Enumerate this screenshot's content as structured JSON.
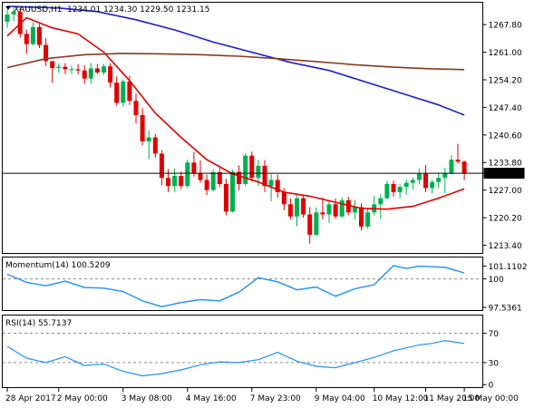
{
  "header": {
    "symbol": "XAUUSD,H1",
    "ohlc": "1234.01 1234.30 1229.50 1231.15"
  },
  "colors": {
    "bull": "#00b050",
    "bear": "#e00000",
    "sma_fast": "#e00000",
    "sma_mid": "#1c1cd2",
    "sma_slow": "#8b3a1e",
    "osc": "#1e90ff",
    "grid": "#8c8c8c"
  },
  "chart_data": [
    {
      "type": "candlestick",
      "name": "XAUUSD,H1",
      "price_label": "1231.15",
      "yticks": [
        "1267.80",
        "1261.00",
        "1254.20",
        "1247.40",
        "1240.60",
        "1233.80",
        "1227.00",
        "1220.20",
        "1213.40"
      ],
      "ylim": [
        1211.5,
        1273.2
      ],
      "last_price": 1231.15,
      "ohlc": [
        [
          1268.5,
          1271.5,
          1267.0,
          1270.3
        ],
        [
          1270.3,
          1272.0,
          1268.6,
          1271.0
        ],
        [
          1271.0,
          1272.3,
          1264.6,
          1265.5
        ],
        [
          1265.5,
          1266.6,
          1260.6,
          1263.0
        ],
        [
          1263.0,
          1268.4,
          1262.7,
          1267.2
        ],
        [
          1267.2,
          1268.0,
          1262.0,
          1262.8
        ],
        [
          1262.8,
          1264.5,
          1257.6,
          1258.8
        ],
        [
          1258.8,
          1258.7,
          1253.4,
          1257.1
        ],
        [
          1257.1,
          1258.3,
          1255.9,
          1257.4
        ],
        [
          1257.4,
          1258.3,
          1255.6,
          1256.8
        ],
        [
          1256.8,
          1257.7,
          1255.6,
          1256.8
        ],
        [
          1256.8,
          1258.1,
          1255.5,
          1256.5
        ],
        [
          1256.5,
          1257.8,
          1253.2,
          1254.5
        ],
        [
          1254.5,
          1258.3,
          1253.2,
          1257.0
        ],
        [
          1257.0,
          1258.1,
          1255.6,
          1256.0
        ],
        [
          1256.0,
          1258.1,
          1255.4,
          1257.5
        ],
        [
          1257.5,
          1258.3,
          1252.3,
          1253.5
        ],
        [
          1253.5,
          1255.0,
          1247.8,
          1248.5
        ],
        [
          1248.5,
          1254.3,
          1247.6,
          1253.8
        ],
        [
          1253.8,
          1255.2,
          1248.0,
          1249.0
        ],
        [
          1249.0,
          1250.8,
          1243.4,
          1245.5
        ],
        [
          1245.5,
          1247.2,
          1238.0,
          1239.0
        ],
        [
          1239.0,
          1241.8,
          1234.6,
          1240.0
        ],
        [
          1240.0,
          1240.8,
          1235.0,
          1236.0
        ],
        [
          1236.0,
          1236.9,
          1228.2,
          1230.0
        ],
        [
          1230.0,
          1232.2,
          1226.5,
          1228.0
        ],
        [
          1228.0,
          1232.3,
          1226.6,
          1230.5
        ],
        [
          1230.5,
          1231.6,
          1227.2,
          1228.0
        ],
        [
          1228.0,
          1234.5,
          1227.5,
          1233.8
        ],
        [
          1233.8,
          1236.4,
          1230.3,
          1231.2
        ],
        [
          1231.2,
          1234.3,
          1228.8,
          1229.5
        ],
        [
          1229.5,
          1230.8,
          1225.8,
          1227.0
        ],
        [
          1227.0,
          1232.1,
          1226.7,
          1231.4
        ],
        [
          1231.4,
          1232.5,
          1227.7,
          1228.5
        ],
        [
          1228.5,
          1229.8,
          1220.8,
          1221.7
        ],
        [
          1221.7,
          1232.0,
          1221.5,
          1231.5
        ],
        [
          1231.5,
          1233.1,
          1226.9,
          1228.5
        ],
        [
          1228.5,
          1236.1,
          1228.0,
          1235.5
        ],
        [
          1235.5,
          1236.5,
          1229.2,
          1230.0
        ],
        [
          1230.0,
          1234.5,
          1228.0,
          1233.0
        ],
        [
          1233.0,
          1234.4,
          1226.5,
          1228.0
        ],
        [
          1228.0,
          1230.9,
          1224.2,
          1229.5
        ],
        [
          1229.5,
          1230.8,
          1225.1,
          1226.5
        ],
        [
          1226.5,
          1227.5,
          1222.0,
          1223.5
        ],
        [
          1223.5,
          1225.0,
          1219.8,
          1220.5
        ],
        [
          1220.5,
          1225.9,
          1218.1,
          1225.0
        ],
        [
          1225.0,
          1225.6,
          1220.2,
          1221.0
        ],
        [
          1221.0,
          1222.8,
          1213.8,
          1216.0
        ],
        [
          1216.0,
          1222.7,
          1215.6,
          1221.5
        ],
        [
          1221.5,
          1225.2,
          1219.8,
          1221.0
        ],
        [
          1221.0,
          1224.4,
          1218.9,
          1223.5
        ],
        [
          1223.5,
          1224.9,
          1219.9,
          1220.5
        ],
        [
          1220.5,
          1225.2,
          1220.1,
          1224.5
        ],
        [
          1224.5,
          1225.4,
          1220.8,
          1221.5
        ],
        [
          1221.5,
          1224.6,
          1219.8,
          1222.8
        ],
        [
          1222.8,
          1223.7,
          1217.1,
          1218.0
        ],
        [
          1218.0,
          1222.6,
          1217.5,
          1221.5
        ],
        [
          1221.5,
          1225.6,
          1220.7,
          1223.5
        ],
        [
          1223.5,
          1226.0,
          1219.9,
          1225.0
        ],
        [
          1225.0,
          1229.4,
          1224.7,
          1228.5
        ],
        [
          1228.5,
          1229.3,
          1225.4,
          1226.5
        ],
        [
          1226.5,
          1228.4,
          1225.0,
          1227.8
        ],
        [
          1227.8,
          1229.6,
          1225.9,
          1228.8
        ],
        [
          1228.8,
          1230.1,
          1227.1,
          1229.5
        ],
        [
          1229.5,
          1232.3,
          1228.4,
          1231.0
        ],
        [
          1231.0,
          1233.2,
          1226.5,
          1227.5
        ],
        [
          1227.5,
          1229.6,
          1226.2,
          1229.0
        ],
        [
          1229.0,
          1231.3,
          1227.5,
          1230.0
        ],
        [
          1230.0,
          1232.5,
          1226.2,
          1231.2
        ],
        [
          1231.2,
          1235.6,
          1230.9,
          1234.5
        ],
        [
          1234.5,
          1238.4,
          1233.4,
          1234.0
        ],
        [
          1234.0,
          1234.3,
          1229.5,
          1231.15
        ]
      ],
      "ma": [
        {
          "period": "fast",
          "x": [
            0,
            3,
            7,
            11,
            15,
            19,
            23,
            27,
            31,
            35,
            39,
            43,
            47,
            51,
            55,
            59,
            63,
            67,
            71
          ],
          "y": [
            1265.0,
            1269.5,
            1267.0,
            1265.5,
            1261.0,
            1254.0,
            1246.0,
            1240.0,
            1234.5,
            1231.0,
            1229.0,
            1226.5,
            1225.5,
            1224.0,
            1222.5,
            1222.3,
            1223.0,
            1225.0,
            1227.3
          ]
        },
        {
          "period": "mid",
          "x": [
            0,
            8,
            14,
            20,
            26,
            32,
            38,
            44,
            50,
            56,
            62,
            67,
            71
          ],
          "y": [
            1272.3,
            1271.9,
            1271.0,
            1269.0,
            1266.5,
            1263.5,
            1261.0,
            1258.5,
            1256.5,
            1253.5,
            1250.5,
            1248.0,
            1245.5
          ]
        },
        {
          "period": "slow",
          "x": [
            0,
            6,
            12,
            18,
            24,
            30,
            36,
            42,
            48,
            54,
            60,
            66,
            71
          ],
          "y": [
            1257.2,
            1259.4,
            1260.4,
            1260.7,
            1260.6,
            1260.4,
            1260.0,
            1259.4,
            1258.7,
            1257.9,
            1257.3,
            1256.9,
            1256.7
          ]
        }
      ]
    },
    {
      "type": "line",
      "name": "Momentum(14)",
      "title": "Momentum(14) 100.5209",
      "yticks": [
        "101.1102",
        "100",
        "97.5361"
      ],
      "ylim": [
        97.3,
        101.85
      ],
      "level": 100,
      "x": [
        0,
        3,
        6,
        9,
        12,
        15,
        18,
        21,
        24,
        27,
        30,
        33,
        36,
        39,
        42,
        45,
        48,
        51,
        54,
        57,
        60,
        62,
        64,
        66,
        68,
        71
      ],
      "values": [
        100.4,
        99.7,
        99.4,
        99.8,
        99.25,
        99.2,
        98.9,
        98.1,
        97.6,
        97.95,
        98.2,
        98.1,
        98.85,
        100.1,
        99.75,
        99.05,
        99.3,
        98.5,
        99.15,
        99.5,
        101.15,
        100.9,
        101.1,
        101.05,
        101.0,
        100.52
      ]
    },
    {
      "type": "line",
      "name": "RSI(14)",
      "title": "RSI(14) 55.7137",
      "yticks": [
        "70",
        "30",
        "0"
      ],
      "ylim": [
        -3.4,
        94
      ],
      "levels": [
        70,
        30
      ],
      "x": [
        0,
        3,
        6,
        9,
        12,
        15,
        18,
        21,
        24,
        27,
        30,
        33,
        36,
        39,
        42,
        45,
        48,
        51,
        54,
        57,
        60,
        62,
        64,
        66,
        68,
        71
      ],
      "values": [
        52,
        36,
        30,
        38,
        26,
        28,
        18,
        12,
        15,
        20,
        27,
        31,
        30,
        34,
        44,
        32,
        25,
        23,
        30,
        37,
        46,
        50,
        54,
        56,
        60,
        56
      ]
    }
  ],
  "time_axis": {
    "labels": [
      {
        "bar": 0,
        "text": "28 Apr 2017"
      },
      {
        "bar": 8,
        "text": "2 May 00:00"
      },
      {
        "bar": 18,
        "text": "3 May 08:00"
      },
      {
        "bar": 28,
        "text": "4 May 16:00"
      },
      {
        "bar": 38,
        "text": "7 May 23:00"
      },
      {
        "bar": 48,
        "text": "9 May 04:00"
      },
      {
        "bar": 57,
        "text": "10 May 12:00"
      },
      {
        "bar": 65,
        "text": "11 May 20:00"
      },
      {
        "bar": 71,
        "text": "15 May 00:00"
      }
    ]
  }
}
